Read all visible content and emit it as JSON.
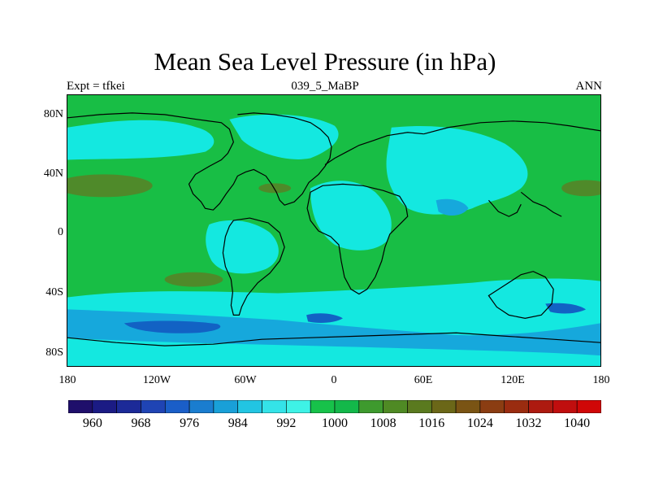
{
  "title": "Mean Sea Level Pressure (in hPa)",
  "left_string": "Expt = tfkei",
  "center_string": "039_5_MaBP",
  "right_string": "ANN",
  "lat_labels": [
    "80N",
    "40N",
    "0",
    "40S",
    "80S"
  ],
  "lon_labels": [
    "180",
    "120W",
    "60W",
    "0",
    "60E",
    "120E",
    "180"
  ],
  "colorbar": {
    "labels": [
      "960",
      "968",
      "976",
      "984",
      "992",
      "1000",
      "1008",
      "1016",
      "1024",
      "1032",
      "1040"
    ],
    "colors": [
      "#1f0f6b",
      "#1b1b84",
      "#1c2a98",
      "#1f44b4",
      "#1a5ec8",
      "#1a7dcf",
      "#19a0d8",
      "#22c5e2",
      "#34e3e8",
      "#3ef2e6",
      "#17c24a",
      "#13b84a",
      "#3e9a2e",
      "#4f8a24",
      "#5a7a1f",
      "#6b6718",
      "#7a5414",
      "#8b3d12",
      "#9a2c10",
      "#ad1a10",
      "#c00e0e",
      "#d00707"
    ]
  },
  "map_colors": {
    "green": "#18be45",
    "cyan": "#14e8e0",
    "blue": "#16a8dc",
    "darkblue": "#1262c4",
    "olive": "#4f8a2a"
  }
}
